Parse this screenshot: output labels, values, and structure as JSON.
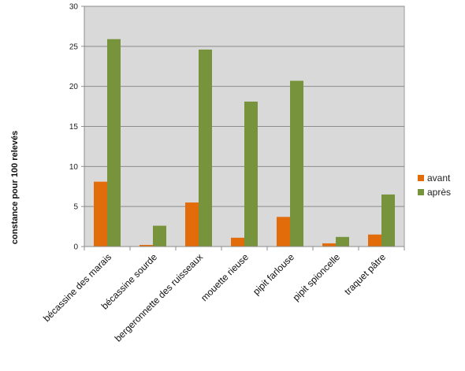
{
  "chart_data": {
    "type": "bar",
    "title": "",
    "xlabel": "",
    "ylabel": "constance pour 100 relevés",
    "ylim": [
      0,
      30
    ],
    "yticks": [
      0,
      5,
      10,
      15,
      20,
      25,
      30
    ],
    "grid": true,
    "legend_position": "right",
    "plot_background": "#d9d9d9",
    "categories": [
      "bécassine des marais",
      "bécassine sourde",
      "bergeronnette des ruisseaux",
      "mouette rieuse",
      "pipit farlouse",
      "pipit spioncelle",
      "traquet pâtre"
    ],
    "series": [
      {
        "name": "avant",
        "color": "#e36c0a",
        "values": [
          8.1,
          0.2,
          5.5,
          1.1,
          3.7,
          0.4,
          1.5
        ]
      },
      {
        "name": "après",
        "color": "#77933c",
        "values": [
          25.9,
          2.6,
          24.6,
          18.1,
          20.7,
          1.2,
          6.5
        ]
      }
    ]
  }
}
